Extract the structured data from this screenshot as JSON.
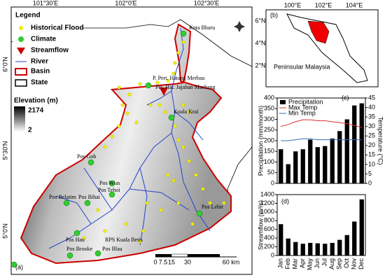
{
  "map": {
    "legend": {
      "title": "Legend",
      "items": [
        "Historical Flood",
        "Climate",
        "Streamflow",
        "River",
        "Basin",
        "State"
      ],
      "elevation_title": "Elevation (m)",
      "elevation_max": "2174",
      "elevation_min": "2"
    },
    "x_labels": [
      "101°30'E",
      "102°0'E",
      "102°30'E"
    ],
    "y_labels": [
      "6°0'N",
      "5°30'N",
      "5°0'N"
    ],
    "stations": [
      "Kota Bharu",
      "P. Pert. Hatang Merbau",
      "Pej. Hai. Jajahan Machang",
      "Kuala Krai",
      "Pos Gob",
      "Pos Wias",
      "Pos Tehoi",
      "Pos Belatim",
      "Pos Bihai",
      "Pos Lebir",
      "Pos Hau",
      "Pos Brooke",
      "Pos Blau",
      "RPS Kuala Betis"
    ],
    "scale": [
      "0",
      "7.5",
      "15",
      "30",
      "60 km"
    ],
    "panel": "(a)"
  },
  "inset": {
    "panel": "(b)",
    "x_labels": [
      "100°E",
      "102°E",
      "104°E"
    ],
    "y_labels": [
      "6°N",
      "4°N",
      "2°N"
    ],
    "label": "Peninsular Malaysia"
  },
  "chart_data": [
    {
      "type": "bar",
      "panel": "(c)",
      "ylabel": "Precipitation (mm/month)",
      "y2label": "Temperature (°C)",
      "ylim": [
        0,
        400
      ],
      "yticks": [
        0,
        50,
        100,
        150,
        200,
        250,
        300,
        350,
        400
      ],
      "y2lim": [
        0,
        45
      ],
      "y2ticks": [
        0,
        5,
        10,
        15,
        20,
        25,
        30,
        35,
        40,
        45
      ],
      "series": [
        {
          "name": "Precipitation",
          "type": "bar",
          "color": "#000000",
          "values": [
            160,
            90,
            150,
            160,
            205,
            170,
            175,
            210,
            245,
            300,
            365,
            375
          ]
        },
        {
          "name": "Max Temp",
          "type": "line",
          "axis": "y2",
          "color": "#e03030",
          "values": [
            30,
            31,
            32.5,
            33.5,
            33.5,
            33,
            33,
            32.5,
            32,
            31.5,
            30.5,
            29.5
          ]
        },
        {
          "name": "Min Temp",
          "type": "line",
          "axis": "y2",
          "color": "#2f6fb5",
          "values": [
            22.5,
            22.5,
            23,
            23.5,
            23.5,
            23,
            23,
            23,
            23,
            23,
            23,
            23
          ]
        }
      ]
    },
    {
      "type": "bar",
      "panel": "(d)",
      "ylabel": "Streamflow (m³/s)",
      "categories": [
        "Jan",
        "Feb",
        "Mar",
        "Apr",
        "May",
        "Jun",
        "Jul",
        "Aug",
        "Sep",
        "Oct",
        "Nov",
        "Dec"
      ],
      "ylim": [
        0,
        1400
      ],
      "yticks": [
        0,
        200,
        400,
        600,
        800,
        1000,
        1200,
        1400
      ],
      "series": [
        {
          "name": "Streamflow",
          "type": "bar",
          "color": "#000000",
          "values": [
            720,
            390,
            310,
            270,
            290,
            280,
            270,
            290,
            360,
            470,
            780,
            1290
          ]
        }
      ]
    }
  ]
}
